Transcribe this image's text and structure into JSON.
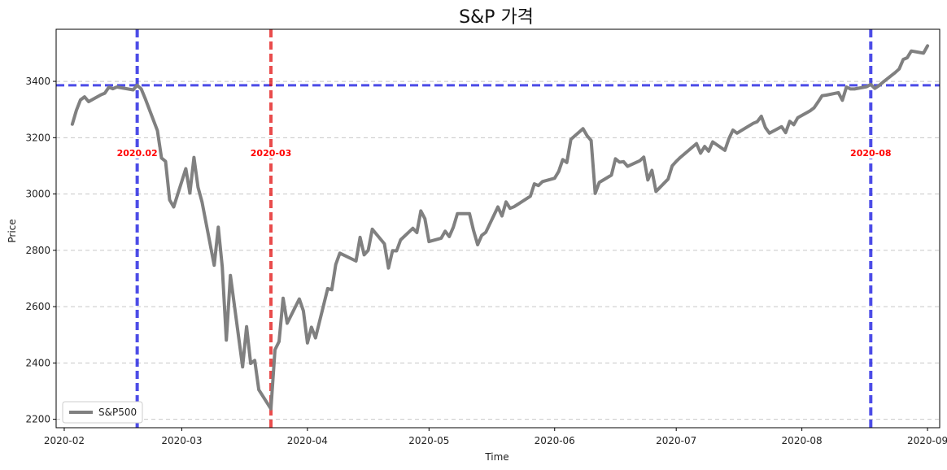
{
  "chart_data": {
    "type": "line",
    "title": "S&P 가격",
    "xlabel": "Time",
    "ylabel": "Price",
    "xlim": [
      "2020-01-30",
      "2020-09-04"
    ],
    "ylim": [
      2170,
      3585
    ],
    "x_ticks": [
      "2020-02-01",
      "2020-03-01",
      "2020-04-01",
      "2020-05-01",
      "2020-06-01",
      "2020-07-01",
      "2020-08-01",
      "2020-09-01"
    ],
    "x_tick_labels": [
      "2020-02",
      "2020-03",
      "2020-04",
      "2020-05",
      "2020-06",
      "2020-07",
      "2020-08",
      "2020-09"
    ],
    "y_ticks": [
      2200,
      2400,
      2600,
      2800,
      3000,
      3200,
      3400
    ],
    "y_tick_labels": [
      "2200",
      "2400",
      "2600",
      "2800",
      "3000",
      "3200",
      "3400"
    ],
    "grid": "y-dashed",
    "legend": "lower-left",
    "series": [
      {
        "name": "S&P500",
        "color": "#808080",
        "points": [
          [
            "2020-02-03",
            3248
          ],
          [
            "2020-02-04",
            3297
          ],
          [
            "2020-02-05",
            3334
          ],
          [
            "2020-02-06",
            3345
          ],
          [
            "2020-02-07",
            3328
          ],
          [
            "2020-02-10",
            3352
          ],
          [
            "2020-02-11",
            3358
          ],
          [
            "2020-02-12",
            3379
          ],
          [
            "2020-02-13",
            3374
          ],
          [
            "2020-02-14",
            3380
          ],
          [
            "2020-02-18",
            3370
          ],
          [
            "2020-02-19",
            3386
          ],
          [
            "2020-02-20",
            3373
          ],
          [
            "2020-02-21",
            3338
          ],
          [
            "2020-02-24",
            3225
          ],
          [
            "2020-02-25",
            3128
          ],
          [
            "2020-02-26",
            3116
          ],
          [
            "2020-02-27",
            2979
          ],
          [
            "2020-02-28",
            2954
          ],
          [
            "2020-03-02",
            3090
          ],
          [
            "2020-03-03",
            3003
          ],
          [
            "2020-03-04",
            3130
          ],
          [
            "2020-03-05",
            3024
          ],
          [
            "2020-03-06",
            2972
          ],
          [
            "2020-03-09",
            2747
          ],
          [
            "2020-03-10",
            2882
          ],
          [
            "2020-03-11",
            2741
          ],
          [
            "2020-03-12",
            2481
          ],
          [
            "2020-03-13",
            2711
          ],
          [
            "2020-03-16",
            2386
          ],
          [
            "2020-03-17",
            2529
          ],
          [
            "2020-03-18",
            2398
          ],
          [
            "2020-03-19",
            2409
          ],
          [
            "2020-03-20",
            2305
          ],
          [
            "2020-03-23",
            2237
          ],
          [
            "2020-03-24",
            2447
          ],
          [
            "2020-03-25",
            2476
          ],
          [
            "2020-03-26",
            2630
          ],
          [
            "2020-03-27",
            2541
          ],
          [
            "2020-03-30",
            2627
          ],
          [
            "2020-03-31",
            2585
          ],
          [
            "2020-04-01",
            2471
          ],
          [
            "2020-04-02",
            2527
          ],
          [
            "2020-04-03",
            2489
          ],
          [
            "2020-04-06",
            2664
          ],
          [
            "2020-04-07",
            2660
          ],
          [
            "2020-04-08",
            2750
          ],
          [
            "2020-04-09",
            2790
          ],
          [
            "2020-04-13",
            2762
          ],
          [
            "2020-04-14",
            2846
          ],
          [
            "2020-04-15",
            2784
          ],
          [
            "2020-04-16",
            2800
          ],
          [
            "2020-04-17",
            2875
          ],
          [
            "2020-04-20",
            2823
          ],
          [
            "2020-04-21",
            2737
          ],
          [
            "2020-04-22",
            2799
          ],
          [
            "2020-04-23",
            2798
          ],
          [
            "2020-04-24",
            2837
          ],
          [
            "2020-04-27",
            2878
          ],
          [
            "2020-04-28",
            2863
          ],
          [
            "2020-04-29",
            2940
          ],
          [
            "2020-04-30",
            2912
          ],
          [
            "2020-05-01",
            2831
          ],
          [
            "2020-05-04",
            2843
          ],
          [
            "2020-05-05",
            2868
          ],
          [
            "2020-05-06",
            2849
          ],
          [
            "2020-05-07",
            2882
          ],
          [
            "2020-05-08",
            2930
          ],
          [
            "2020-05-11",
            2930
          ],
          [
            "2020-05-12",
            2870
          ],
          [
            "2020-05-13",
            2820
          ],
          [
            "2020-05-14",
            2853
          ],
          [
            "2020-05-15",
            2864
          ],
          [
            "2020-05-18",
            2954
          ],
          [
            "2020-05-19",
            2922
          ],
          [
            "2020-05-20",
            2972
          ],
          [
            "2020-05-21",
            2949
          ],
          [
            "2020-05-22",
            2955
          ],
          [
            "2020-05-26",
            2992
          ],
          [
            "2020-05-27",
            3036
          ],
          [
            "2020-05-28",
            3030
          ],
          [
            "2020-05-29",
            3044
          ],
          [
            "2020-06-01",
            3056
          ],
          [
            "2020-06-02",
            3080
          ],
          [
            "2020-06-03",
            3122
          ],
          [
            "2020-06-04",
            3112
          ],
          [
            "2020-06-05",
            3194
          ],
          [
            "2020-06-08",
            3232
          ],
          [
            "2020-06-09",
            3207
          ],
          [
            "2020-06-10",
            3190
          ],
          [
            "2020-06-11",
            3002
          ],
          [
            "2020-06-12",
            3041
          ],
          [
            "2020-06-15",
            3067
          ],
          [
            "2020-06-16",
            3125
          ],
          [
            "2020-06-17",
            3113
          ],
          [
            "2020-06-18",
            3115
          ],
          [
            "2020-06-19",
            3098
          ],
          [
            "2020-06-22",
            3118
          ],
          [
            "2020-06-23",
            3131
          ],
          [
            "2020-06-24",
            3050
          ],
          [
            "2020-06-25",
            3084
          ],
          [
            "2020-06-26",
            3009
          ],
          [
            "2020-06-29",
            3053
          ],
          [
            "2020-06-30",
            3100
          ],
          [
            "2020-07-01",
            3116
          ],
          [
            "2020-07-02",
            3130
          ],
          [
            "2020-07-06",
            3179
          ],
          [
            "2020-07-07",
            3145
          ],
          [
            "2020-07-08",
            3169
          ],
          [
            "2020-07-09",
            3152
          ],
          [
            "2020-07-10",
            3185
          ],
          [
            "2020-07-13",
            3155
          ],
          [
            "2020-07-14",
            3197
          ],
          [
            "2020-07-15",
            3227
          ],
          [
            "2020-07-16",
            3216
          ],
          [
            "2020-07-17",
            3225
          ],
          [
            "2020-07-20",
            3251
          ],
          [
            "2020-07-21",
            3257
          ],
          [
            "2020-07-22",
            3276
          ],
          [
            "2020-07-23",
            3236
          ],
          [
            "2020-07-24",
            3216
          ],
          [
            "2020-07-27",
            3239
          ],
          [
            "2020-07-28",
            3218
          ],
          [
            "2020-07-29",
            3258
          ],
          [
            "2020-07-30",
            3246
          ],
          [
            "2020-07-31",
            3271
          ],
          [
            "2020-08-03",
            3295
          ],
          [
            "2020-08-04",
            3306
          ],
          [
            "2020-08-05",
            3327
          ],
          [
            "2020-08-06",
            3349
          ],
          [
            "2020-08-07",
            3351
          ],
          [
            "2020-08-10",
            3360
          ],
          [
            "2020-08-11",
            3333
          ],
          [
            "2020-08-12",
            3380
          ],
          [
            "2020-08-13",
            3373
          ],
          [
            "2020-08-14",
            3373
          ],
          [
            "2020-08-17",
            3381
          ],
          [
            "2020-08-18",
            3389
          ],
          [
            "2020-08-19",
            3375
          ],
          [
            "2020-08-20",
            3385
          ],
          [
            "2020-08-21",
            3397
          ],
          [
            "2020-08-24",
            3431
          ],
          [
            "2020-08-25",
            3444
          ],
          [
            "2020-08-26",
            3478
          ],
          [
            "2020-08-27",
            3484
          ],
          [
            "2020-08-28",
            3508
          ],
          [
            "2020-08-31",
            3500
          ],
          [
            "2020-09-01",
            3526
          ]
        ]
      }
    ],
    "reference_lines": [
      {
        "orientation": "horizontal",
        "y": 3386,
        "color": "#0000dd"
      },
      {
        "orientation": "vertical",
        "x": "2020-02-19",
        "label": "2020.02",
        "color": "#0000dd",
        "label_color": "#ff0000"
      },
      {
        "orientation": "vertical",
        "x": "2020-03-23",
        "label": "2020-03",
        "color": "#e00000",
        "label_color": "#ff0000"
      },
      {
        "orientation": "vertical",
        "x": "2020-08-18",
        "label": "2020-08",
        "color": "#0000dd",
        "label_color": "#ff0000"
      }
    ]
  }
}
